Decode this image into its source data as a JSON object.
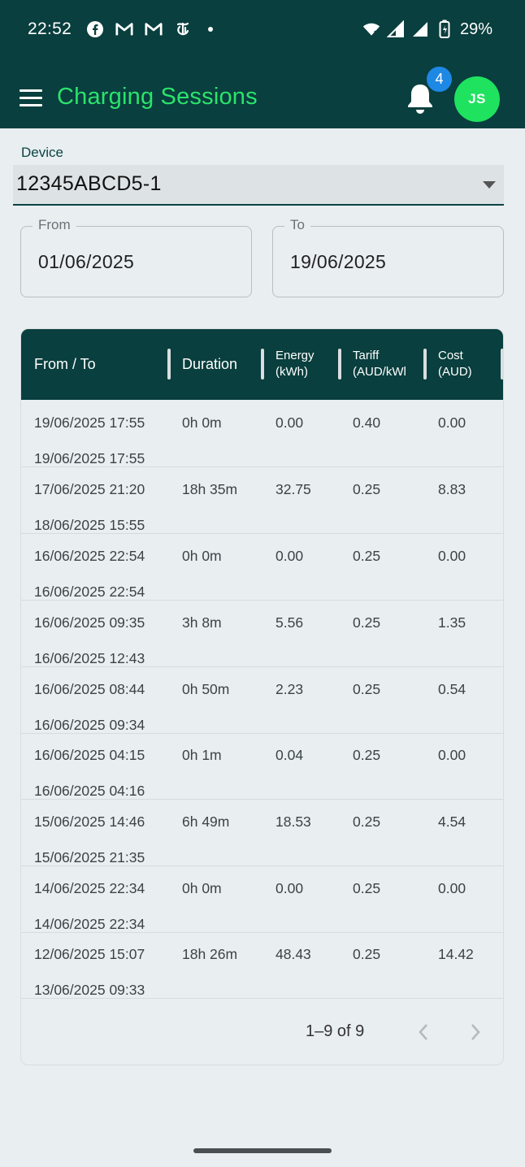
{
  "status_bar": {
    "time": "22:52",
    "battery": "29%"
  },
  "app_bar": {
    "title": "Charging Sessions",
    "notifications_count": "4",
    "avatar_initials": "JS"
  },
  "device": {
    "label": "Device",
    "value": "12345ABCD5-1"
  },
  "date_range": {
    "from_label": "From",
    "from_value": "01/06/2025",
    "to_label": "To",
    "to_value": "19/06/2025"
  },
  "table": {
    "headers": {
      "from_to": "From / To",
      "duration": "Duration",
      "energy_1": "Energy",
      "energy_2": "(kWh)",
      "tariff_1": "Tariff",
      "tariff_2": "(AUD/kWl",
      "cost_1": "Cost",
      "cost_2": "(AUD)"
    },
    "rows": [
      {
        "from": "19/06/2025 17:55",
        "to": "19/06/2025 17:55",
        "duration": "0h 0m",
        "energy": "0.00",
        "tariff": "0.40",
        "cost": "0.00"
      },
      {
        "from": "17/06/2025 21:20",
        "to": "18/06/2025 15:55",
        "duration": "18h 35m",
        "energy": "32.75",
        "tariff": "0.25",
        "cost": "8.83"
      },
      {
        "from": "16/06/2025 22:54",
        "to": "16/06/2025 22:54",
        "duration": "0h 0m",
        "energy": "0.00",
        "tariff": "0.25",
        "cost": "0.00"
      },
      {
        "from": "16/06/2025 09:35",
        "to": "16/06/2025 12:43",
        "duration": "3h 8m",
        "energy": "5.56",
        "tariff": "0.25",
        "cost": "1.35"
      },
      {
        "from": "16/06/2025 08:44",
        "to": "16/06/2025 09:34",
        "duration": "0h 50m",
        "energy": "2.23",
        "tariff": "0.25",
        "cost": "0.54"
      },
      {
        "from": "16/06/2025 04:15",
        "to": "16/06/2025 04:16",
        "duration": "0h 1m",
        "energy": "0.04",
        "tariff": "0.25",
        "cost": "0.00"
      },
      {
        "from": "15/06/2025 14:46",
        "to": "15/06/2025 21:35",
        "duration": "6h 49m",
        "energy": "18.53",
        "tariff": "0.25",
        "cost": "4.54"
      },
      {
        "from": "14/06/2025 22:34",
        "to": "14/06/2025 22:34",
        "duration": "0h 0m",
        "energy": "0.00",
        "tariff": "0.25",
        "cost": "0.00"
      },
      {
        "from": "12/06/2025 15:07",
        "to": "13/06/2025 09:33",
        "duration": "18h 26m",
        "energy": "48.43",
        "tariff": "0.25",
        "cost": "14.42"
      }
    ],
    "pagination": "1–9 of 9"
  },
  "colors": {
    "primary": "#093f3e",
    "accent": "#2be36c",
    "badge": "#1e88e5"
  },
  "icons": [
    "facebook-icon",
    "gmail-icon",
    "nytimes-icon",
    "wifi-icon",
    "signal-icon",
    "battery-icon",
    "menu-icon",
    "bell-icon",
    "chevron-left-icon",
    "chevron-right-icon",
    "dropdown-caret-icon"
  ]
}
